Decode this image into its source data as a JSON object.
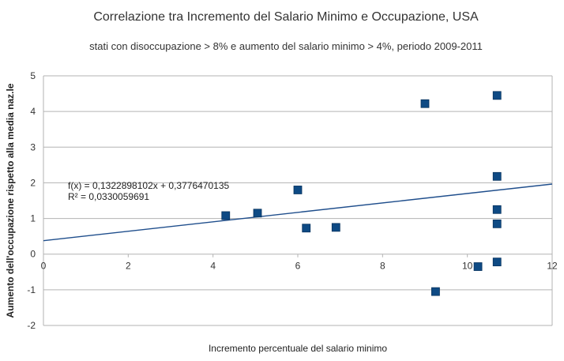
{
  "chart_data": {
    "type": "scatter",
    "title": "Correlazione tra Incremento del Salario Minimo e Occupazione, USA",
    "subtitle": "stati con disoccupazione > 8% e aumento del salario minimo > 4%, periodo 2009-2011",
    "xlabel": "Incremento percentuale del salario minimo",
    "ylabel": "Aumento dell'occupazione rispetto alla media naz.le",
    "xlim": [
      0,
      12
    ],
    "ylim": [
      -2,
      5
    ],
    "x_ticks": [
      "0",
      "2",
      "4",
      "6",
      "8",
      "10",
      "12"
    ],
    "y_ticks": [
      "-2",
      "-1",
      "0",
      "1",
      "2",
      "3",
      "4",
      "5"
    ],
    "grid": "horizontal",
    "legend": "none",
    "marker_color": "#0e4a84",
    "trendline_color": "#1f4e8c",
    "trendline": {
      "slope": 0.1322898102,
      "intercept": 0.3776470135,
      "equation": "f(x) = 0,1322898102x + 0,3776470135",
      "r2": "R² = 0,0330059691"
    },
    "points": [
      {
        "x": 4.3,
        "y": 1.08
      },
      {
        "x": 5.05,
        "y": 1.15
      },
      {
        "x": 6.0,
        "y": 1.8
      },
      {
        "x": 6.2,
        "y": 0.73
      },
      {
        "x": 6.9,
        "y": 0.75
      },
      {
        "x": 9.0,
        "y": 4.22
      },
      {
        "x": 9.25,
        "y": -1.05
      },
      {
        "x": 10.25,
        "y": -0.35
      },
      {
        "x": 10.7,
        "y": 4.45
      },
      {
        "x": 10.7,
        "y": 2.18
      },
      {
        "x": 10.7,
        "y": 1.25
      },
      {
        "x": 10.7,
        "y": 0.85
      },
      {
        "x": 10.7,
        "y": -0.22
      }
    ]
  }
}
